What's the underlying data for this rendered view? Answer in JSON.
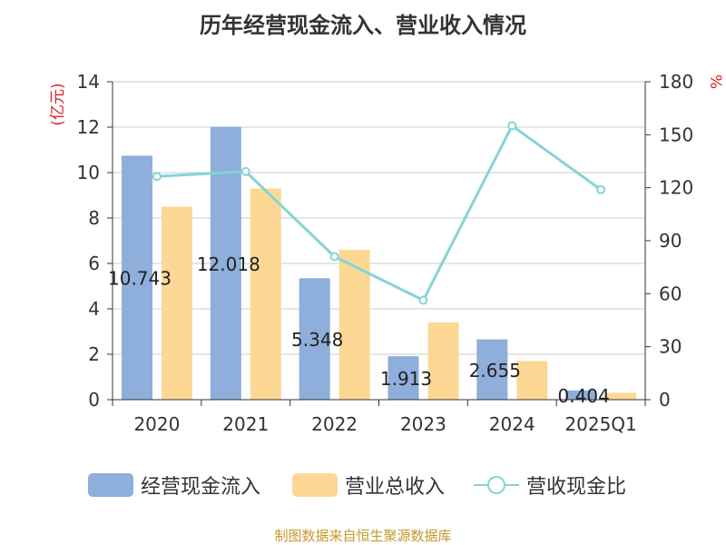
{
  "title": "历年经营现金流入、营业收入情况",
  "source_note": "制图数据来自恒生聚源数据库",
  "colors": {
    "cash_inflow": "#8eaedb",
    "revenue": "#fdd895",
    "ratio": "#86d3d6",
    "left_axis_title": "#dd2222",
    "right_axis_title": "#dd2222"
  },
  "chart_data": {
    "type": "bar",
    "title": "历年经营现金流入、营业收入情况",
    "categories": [
      "2020",
      "2021",
      "2022",
      "2023",
      "2024",
      "2025Q1"
    ],
    "ylabel": "(亿元)",
    "y2label": "%",
    "ylim": [
      0,
      14
    ],
    "y2lim": [
      0,
      180
    ],
    "yticks": [
      "0",
      "2",
      "4",
      "6",
      "8",
      "10",
      "12",
      "14"
    ],
    "y2ticks": [
      "0",
      "30",
      "60",
      "90",
      "120",
      "150",
      "180"
    ],
    "grid": true,
    "legend_position": "bottom",
    "series": [
      {
        "name": "经营现金流入",
        "type": "bar",
        "axis": "left",
        "values": [
          10.743,
          12.018,
          5.348,
          1.913,
          2.655,
          0.404
        ],
        "labels": [
          "10.743",
          "12.018",
          "5.348",
          "1.913",
          "2.655",
          "0.404"
        ]
      },
      {
        "name": "营业总收入",
        "type": "bar",
        "axis": "left",
        "values": [
          8.5,
          9.3,
          6.6,
          3.4,
          1.7,
          0.3
        ]
      },
      {
        "name": "营收现金比",
        "type": "line",
        "axis": "right",
        "values": [
          126.4,
          129.2,
          81.0,
          56.3,
          155.1,
          118.9
        ]
      }
    ]
  }
}
